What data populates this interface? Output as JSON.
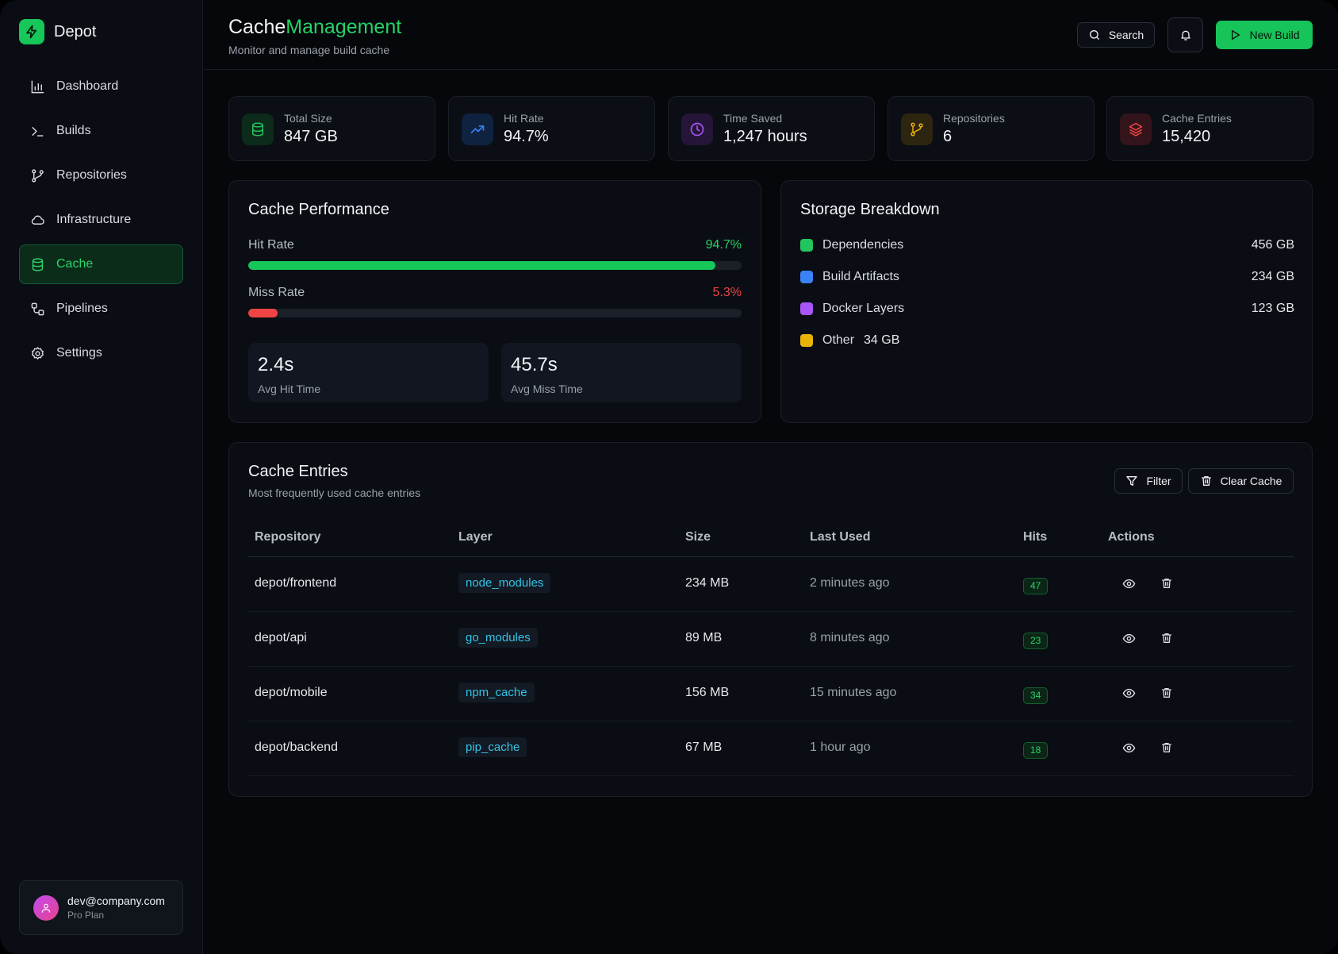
{
  "app": {
    "name": "Depot"
  },
  "sidebar": {
    "items": [
      {
        "label": "Dashboard",
        "icon": "bar-chart-icon",
        "active": false
      },
      {
        "label": "Builds",
        "icon": "terminal-icon",
        "active": false
      },
      {
        "label": "Repositories",
        "icon": "git-branch-icon",
        "active": false
      },
      {
        "label": "Infrastructure",
        "icon": "cloud-icon",
        "active": false
      },
      {
        "label": "Cache",
        "icon": "database-icon",
        "active": true
      },
      {
        "label": "Pipelines",
        "icon": "workflow-icon",
        "active": false
      },
      {
        "label": "Settings",
        "icon": "gear-icon",
        "active": false
      }
    ],
    "user": {
      "email": "dev@company.com",
      "plan": "Pro Plan"
    }
  },
  "header": {
    "title_main": "Cache",
    "title_accent": "Management",
    "subtitle": "Monitor and manage build cache",
    "search_label": "Search",
    "new_build_label": "New Build"
  },
  "stats": [
    {
      "label": "Total Size",
      "value": "847 GB",
      "icon": "database-icon",
      "color": "#22c55e"
    },
    {
      "label": "Hit Rate",
      "value": "94.7%",
      "icon": "trending-up-icon",
      "color": "#3b82f6"
    },
    {
      "label": "Time Saved",
      "value": "1,247 hours",
      "icon": "clock-icon",
      "color": "#a855f7"
    },
    {
      "label": "Repositories",
      "value": "6",
      "icon": "git-branch-icon",
      "color": "#eab308"
    },
    {
      "label": "Cache Entries",
      "value": "15,420",
      "icon": "layers-icon",
      "color": "#ef4444"
    }
  ],
  "performance": {
    "title": "Cache Performance",
    "hit": {
      "label": "Hit Rate",
      "value": "94.7%",
      "percent": 94.7,
      "color": "#22c55e"
    },
    "miss": {
      "label": "Miss Rate",
      "value": "5.3%",
      "percent": 5.3,
      "color": "#ef4444"
    },
    "avg_hit": {
      "value": "2.4s",
      "label": "Avg Hit Time"
    },
    "avg_miss": {
      "value": "45.7s",
      "label": "Avg Miss Time"
    }
  },
  "storage": {
    "title": "Storage Breakdown",
    "items": [
      {
        "label": "Dependencies",
        "size": "456 GB",
        "color": "#22c55e"
      },
      {
        "label": "Build Artifacts",
        "size": "234 GB",
        "color": "#3b82f6"
      },
      {
        "label": "Docker Layers",
        "size": "123 GB",
        "color": "#a855f7"
      },
      {
        "label": "Other",
        "size": "34 GB",
        "color": "#eab308"
      }
    ]
  },
  "entries": {
    "title": "Cache Entries",
    "subtitle": "Most frequently used cache entries",
    "filter_label": "Filter",
    "clear_label": "Clear Cache",
    "columns": [
      "Repository",
      "Layer",
      "Size",
      "Last Used",
      "Hits",
      "Actions"
    ],
    "rows": [
      {
        "repo": "depot/frontend",
        "layer": "node_modules",
        "size": "234 MB",
        "last_used": "2 minutes ago",
        "hits": "47"
      },
      {
        "repo": "depot/api",
        "layer": "go_modules",
        "size": "89 MB",
        "last_used": "8 minutes ago",
        "hits": "23"
      },
      {
        "repo": "depot/mobile",
        "layer": "npm_cache",
        "size": "156 MB",
        "last_used": "15 minutes ago",
        "hits": "34"
      },
      {
        "repo": "depot/backend",
        "layer": "pip_cache",
        "size": "67 MB",
        "last_used": "1 hour ago",
        "hits": "18"
      }
    ]
  }
}
